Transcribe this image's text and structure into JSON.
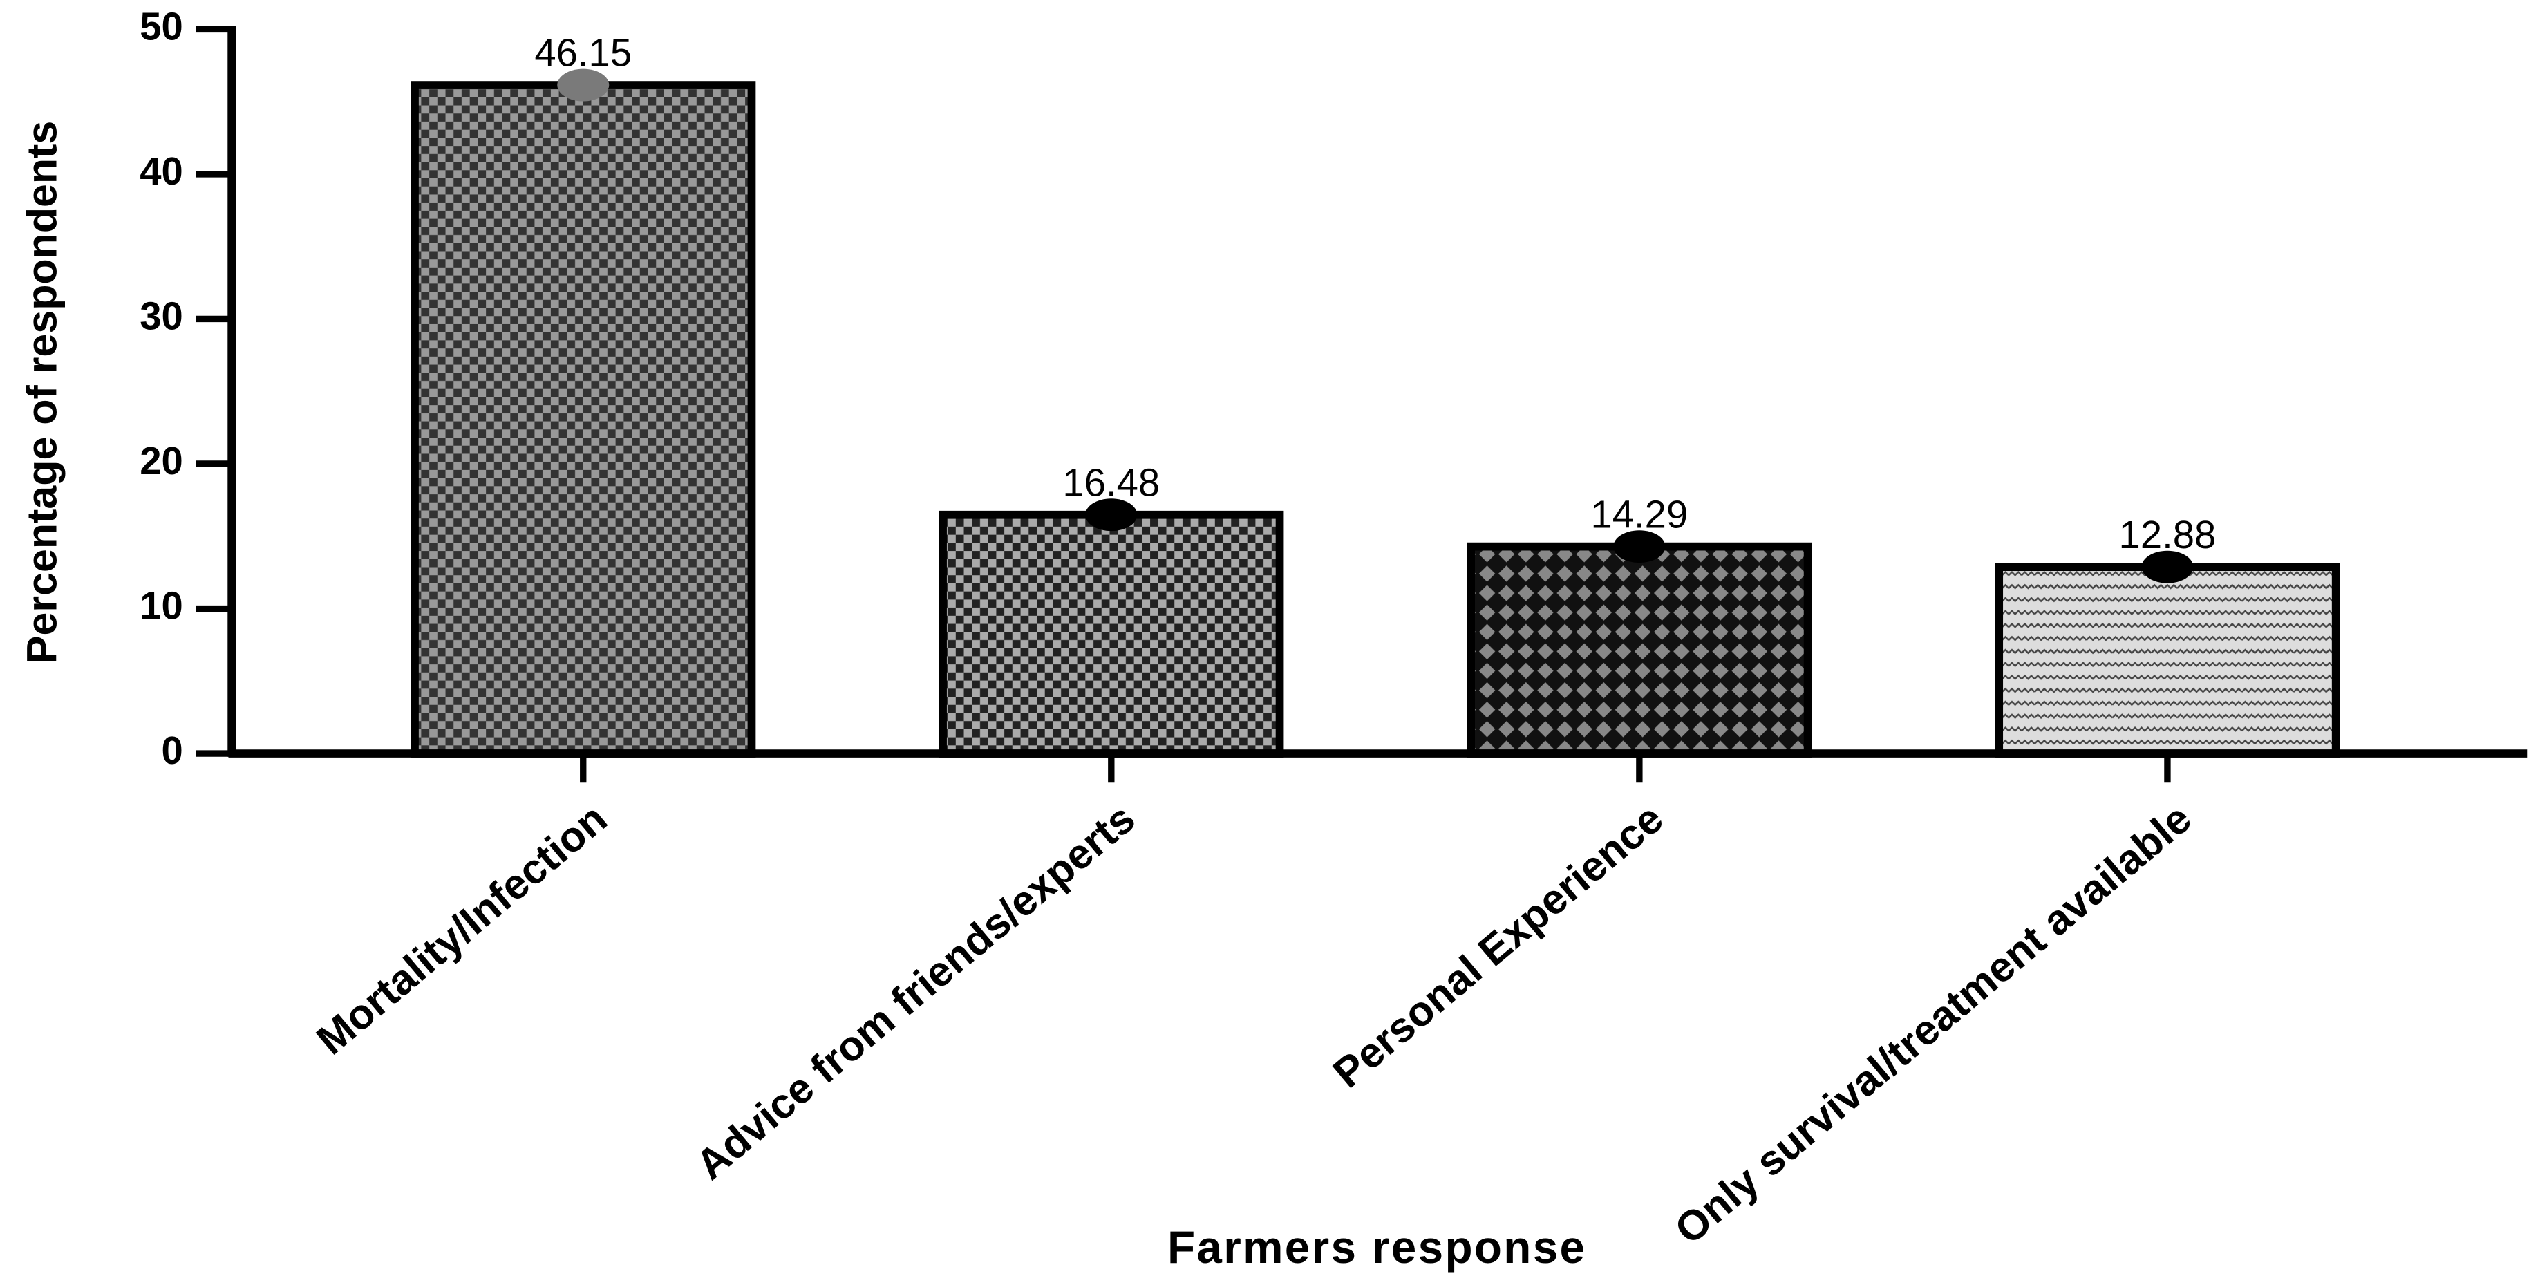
{
  "chart_data": {
    "type": "bar",
    "x_label": "Farmers response",
    "y_label": "Percentage of respondents",
    "categories": [
      "Mortality/Infection",
      "Advice from friends/experts",
      "Personal Experience",
      "Only survival/treatment available"
    ],
    "values": [
      46.15,
      16.48,
      14.29,
      12.88
    ],
    "marker_colors": [
      "#7a7a7a",
      "#000000",
      "#000000",
      "#000000"
    ],
    "ylim": [
      0,
      50
    ],
    "yticks": [
      0,
      10,
      20,
      30,
      40,
      50
    ],
    "grid": false
  }
}
